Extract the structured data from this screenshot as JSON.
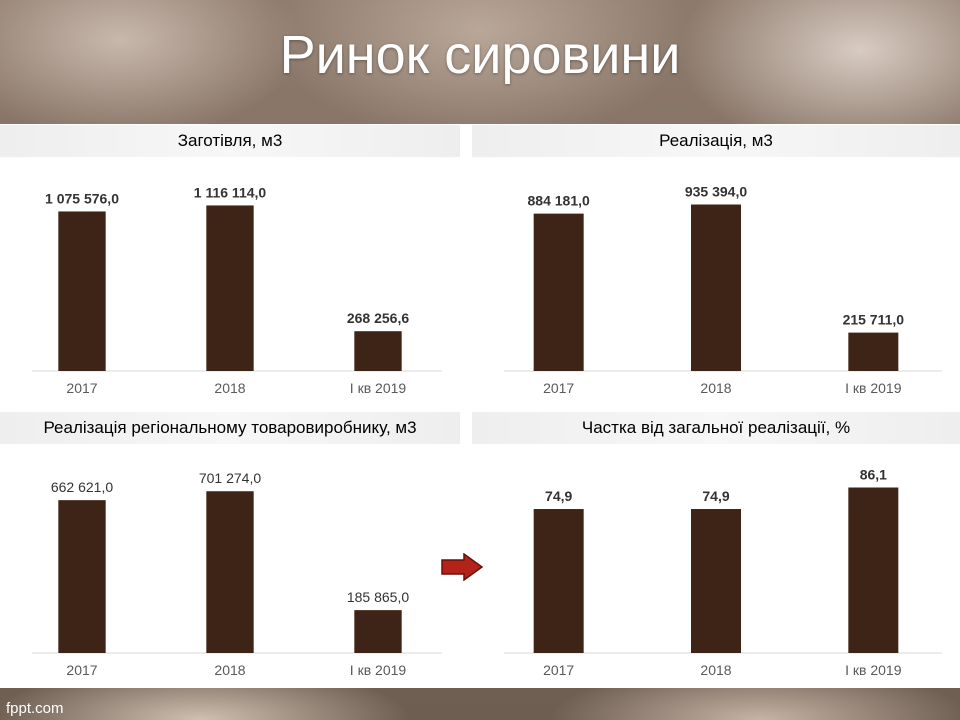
{
  "slide": {
    "title": "Ринок сировини",
    "footer": "fppt.com",
    "bar_color": "#3e2416",
    "arrow_color": "#b3231a"
  },
  "chart_data": [
    {
      "type": "bar",
      "title": "Заготівля, м3",
      "categories": [
        "2017",
        "2018",
        "I кв 2019"
      ],
      "values": [
        1075576.0,
        1116114.0,
        268256.6
      ],
      "labels": [
        "1 075 576,0",
        "1 116 114,0",
        "268 256,6"
      ],
      "label_weight": "bold",
      "ylim": [
        0,
        1200000
      ]
    },
    {
      "type": "bar",
      "title": "Реалізація, м3",
      "categories": [
        "2017",
        "2018",
        "I кв 2019"
      ],
      "values": [
        884181.0,
        935394.0,
        215711.0
      ],
      "labels": [
        "884 181,0",
        "935 394,0",
        "215 711,0"
      ],
      "label_weight": "bold",
      "ylim": [
        0,
        1000000
      ]
    },
    {
      "type": "bar",
      "title": "Реалізація регіональному товаровиробнику, м3",
      "categories": [
        "2017",
        "2018",
        "I кв 2019"
      ],
      "values": [
        662621.0,
        701274.0,
        185865.0
      ],
      "labels": [
        "662 621,0",
        "701 274,0",
        "185 865,0"
      ],
      "label_weight": "normal",
      "ylim": [
        0,
        750000
      ]
    },
    {
      "type": "bar",
      "title": "Частка від загальної реалізації, %",
      "categories": [
        "2017",
        "2018",
        "I кв 2019"
      ],
      "values": [
        74.9,
        74.9,
        86.1
      ],
      "labels": [
        "74,9",
        "74,9",
        "86,1"
      ],
      "label_weight": "bold",
      "ylim": [
        0,
        90
      ]
    }
  ]
}
